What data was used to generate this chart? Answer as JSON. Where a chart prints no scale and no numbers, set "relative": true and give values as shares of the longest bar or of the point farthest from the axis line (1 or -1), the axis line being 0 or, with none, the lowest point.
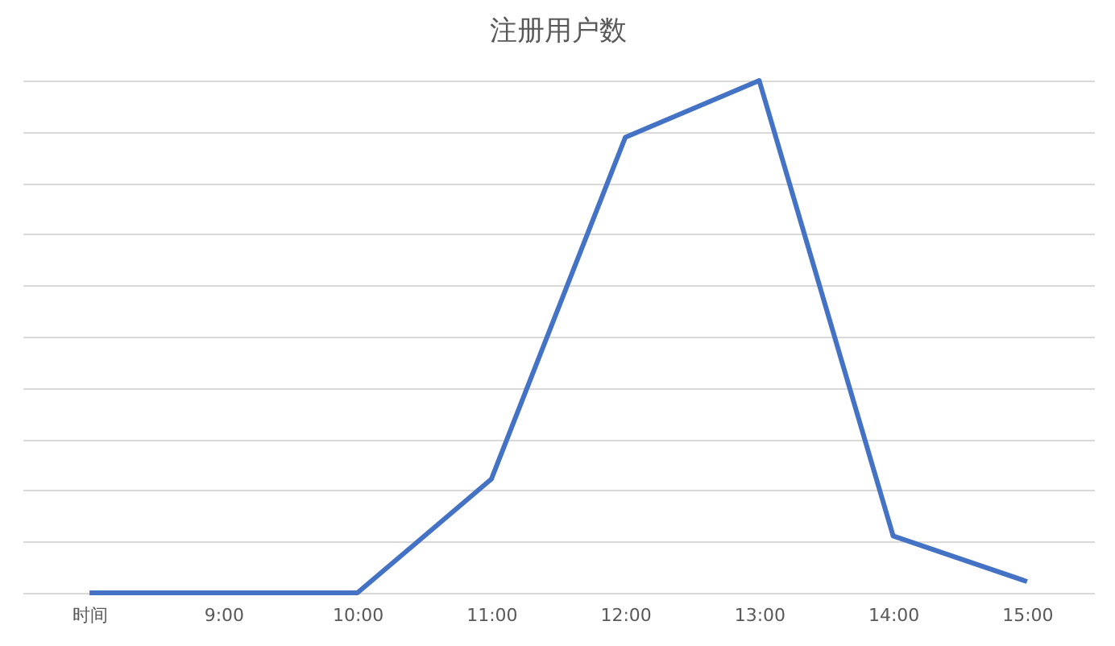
{
  "chart_data": {
    "type": "line",
    "title": "注册用户数",
    "categories": [
      "时间",
      "9:00",
      "10:00",
      "11:00",
      "12:00",
      "13:00",
      "14:00",
      "15:00"
    ],
    "values": [
      0,
      0,
      0,
      0.222,
      0.889,
      1,
      0.111,
      0.022
    ],
    "color": "#4472c4",
    "relative": true,
    "grid": "y"
  }
}
